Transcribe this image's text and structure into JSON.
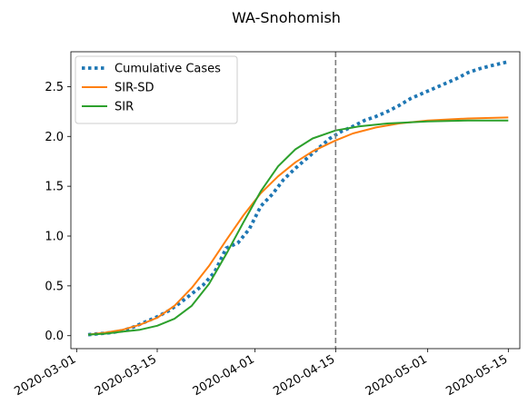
{
  "chart_data": {
    "type": "line",
    "title": "WA-Snohomish",
    "xlabel": "",
    "ylabel": "",
    "x_type": "date",
    "xlim": [
      "2020-02-29",
      "2020-05-17"
    ],
    "ylim": [
      -0.13,
      2.85
    ],
    "x_ticks": [
      "2020-03-01",
      "2020-03-15",
      "2020-04-01",
      "2020-04-15",
      "2020-05-01",
      "2020-05-15"
    ],
    "y_ticks": [
      0.0,
      0.5,
      1.0,
      1.5,
      2.0,
      2.5
    ],
    "y_tick_labels": [
      "0.0",
      "0.5",
      "1.0",
      "1.5",
      "2.0",
      "2.5"
    ],
    "grid": false,
    "legend": {
      "position": "top-left"
    },
    "vline": {
      "x": "2020-04-15",
      "color": "#7f7f7f",
      "style": "dashed"
    },
    "series": [
      {
        "name": "Cumulative Cases",
        "color": "#1f77b4",
        "style": "dotted",
        "points": [
          [
            "2020-03-03",
            0.01
          ],
          [
            "2020-03-05",
            0.02
          ],
          [
            "2020-03-07",
            0.03
          ],
          [
            "2020-03-09",
            0.05
          ],
          [
            "2020-03-11",
            0.09
          ],
          [
            "2020-03-13",
            0.14
          ],
          [
            "2020-03-15",
            0.19
          ],
          [
            "2020-03-17",
            0.25
          ],
          [
            "2020-03-19",
            0.33
          ],
          [
            "2020-03-21",
            0.42
          ],
          [
            "2020-03-23",
            0.51
          ],
          [
            "2020-03-25",
            0.64
          ],
          [
            "2020-03-27",
            0.88
          ],
          [
            "2020-03-29",
            0.93
          ],
          [
            "2020-03-31",
            1.07
          ],
          [
            "2020-04-02",
            1.3
          ],
          [
            "2020-04-04",
            1.42
          ],
          [
            "2020-04-06",
            1.57
          ],
          [
            "2020-04-08",
            1.68
          ],
          [
            "2020-04-10",
            1.78
          ],
          [
            "2020-04-12",
            1.88
          ],
          [
            "2020-04-14",
            1.98
          ],
          [
            "2020-04-16",
            2.05
          ],
          [
            "2020-04-18",
            2.1
          ],
          [
            "2020-04-20",
            2.16
          ],
          [
            "2020-04-22",
            2.2
          ],
          [
            "2020-04-24",
            2.25
          ],
          [
            "2020-04-26",
            2.31
          ],
          [
            "2020-04-28",
            2.38
          ],
          [
            "2020-04-30",
            2.43
          ],
          [
            "2020-05-02",
            2.48
          ],
          [
            "2020-05-04",
            2.53
          ],
          [
            "2020-05-06",
            2.58
          ],
          [
            "2020-05-08",
            2.64
          ],
          [
            "2020-05-10",
            2.68
          ],
          [
            "2020-05-12",
            2.71
          ],
          [
            "2020-05-15",
            2.75
          ]
        ]
      },
      {
        "name": "SIR-SD",
        "color": "#ff7f0e",
        "style": "solid",
        "points": [
          [
            "2020-03-03",
            0.01
          ],
          [
            "2020-03-06",
            0.03
          ],
          [
            "2020-03-09",
            0.06
          ],
          [
            "2020-03-12",
            0.11
          ],
          [
            "2020-03-15",
            0.18
          ],
          [
            "2020-03-18",
            0.3
          ],
          [
            "2020-03-21",
            0.48
          ],
          [
            "2020-03-24",
            0.7
          ],
          [
            "2020-03-27",
            0.96
          ],
          [
            "2020-03-30",
            1.21
          ],
          [
            "2020-04-02",
            1.43
          ],
          [
            "2020-04-05",
            1.6
          ],
          [
            "2020-04-08",
            1.74
          ],
          [
            "2020-04-11",
            1.85
          ],
          [
            "2020-04-15",
            1.96
          ],
          [
            "2020-04-18",
            2.03
          ],
          [
            "2020-04-22",
            2.09
          ],
          [
            "2020-04-26",
            2.13
          ],
          [
            "2020-05-01",
            2.16
          ],
          [
            "2020-05-08",
            2.18
          ],
          [
            "2020-05-15",
            2.19
          ]
        ]
      },
      {
        "name": "SIR",
        "color": "#2ca02c",
        "style": "solid",
        "points": [
          [
            "2020-03-03",
            0.01
          ],
          [
            "2020-03-06",
            0.02
          ],
          [
            "2020-03-09",
            0.04
          ],
          [
            "2020-03-12",
            0.06
          ],
          [
            "2020-03-15",
            0.1
          ],
          [
            "2020-03-18",
            0.17
          ],
          [
            "2020-03-21",
            0.3
          ],
          [
            "2020-03-24",
            0.52
          ],
          [
            "2020-03-27",
            0.82
          ],
          [
            "2020-03-30",
            1.14
          ],
          [
            "2020-04-02",
            1.45
          ],
          [
            "2020-04-05",
            1.7
          ],
          [
            "2020-04-08",
            1.87
          ],
          [
            "2020-04-11",
            1.98
          ],
          [
            "2020-04-15",
            2.06
          ],
          [
            "2020-04-19",
            2.1
          ],
          [
            "2020-04-24",
            2.13
          ],
          [
            "2020-05-01",
            2.15
          ],
          [
            "2020-05-08",
            2.16
          ],
          [
            "2020-05-15",
            2.16
          ]
        ]
      }
    ]
  }
}
